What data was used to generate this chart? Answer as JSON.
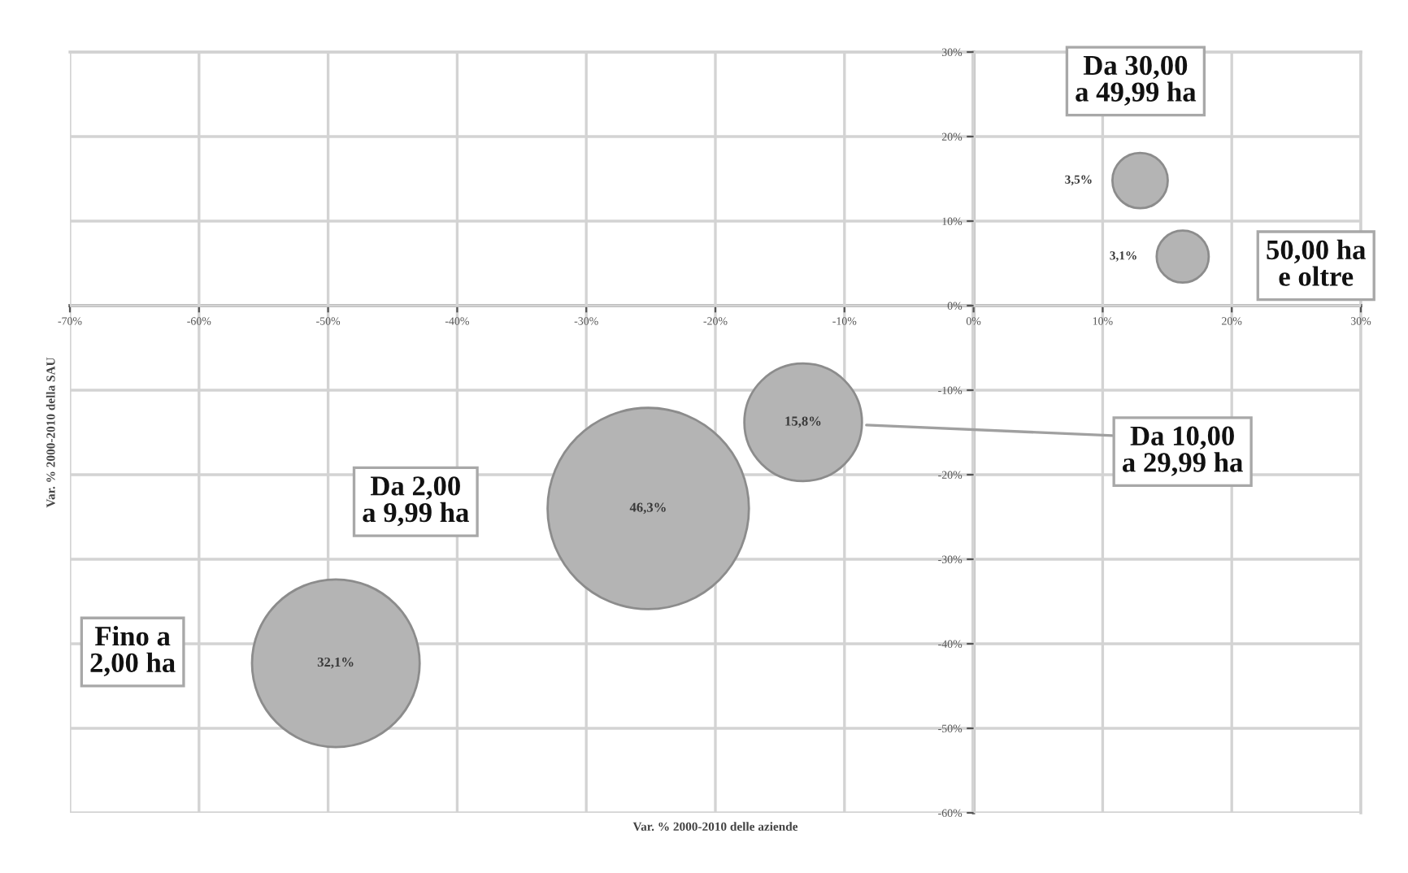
{
  "chart_data": {
    "type": "bubble",
    "xlabel": "Var. % 2000-2010 delle aziende",
    "ylabel": "Var. % 2000-2010 della SAU",
    "xlim": [
      -70,
      30
    ],
    "ylim": [
      -60,
      30
    ],
    "xticks": [
      {
        "value": -70,
        "label": "-70%"
      },
      {
        "value": -60,
        "label": "-60%"
      },
      {
        "value": -50,
        "label": "-50%"
      },
      {
        "value": -40,
        "label": "-40%"
      },
      {
        "value": -30,
        "label": "-30%"
      },
      {
        "value": -20,
        "label": "-20%"
      },
      {
        "value": -10,
        "label": "-10%"
      },
      {
        "value": 0,
        "label": "0%"
      },
      {
        "value": 10,
        "label": "10%"
      },
      {
        "value": 20,
        "label": "20%"
      },
      {
        "value": 30,
        "label": "30%"
      }
    ],
    "yticks": [
      {
        "value": -60,
        "label": "-60%"
      },
      {
        "value": -50,
        "label": "-50%"
      },
      {
        "value": -40,
        "label": "-40%"
      },
      {
        "value": -30,
        "label": "-30%"
      },
      {
        "value": -20,
        "label": "-20%"
      },
      {
        "value": -10,
        "label": "-10%"
      },
      {
        "value": 0,
        "label": "0%"
      },
      {
        "value": 10,
        "label": "10%"
      },
      {
        "value": 20,
        "label": "20%"
      },
      {
        "value": 30,
        "label": "30%"
      }
    ],
    "grid": true,
    "series": [
      {
        "name": "Fino a\n2,00 ha",
        "color": "#b4b4b4",
        "x": [
          -49.4
        ],
        "values": [
          -42.3
        ],
        "sizes": [
          32.1
        ],
        "value_labels": [
          "32,1%"
        ]
      },
      {
        "name": "Da 2,00\na 9,99 ha",
        "color": "#b4b4b4",
        "x": [
          -25.2
        ],
        "values": [
          -24.0
        ],
        "sizes": [
          46.3
        ],
        "value_labels": [
          "46,3%"
        ]
      },
      {
        "name": "Da 10,00\na 29,99 ha",
        "color": "#b4b4b4",
        "x": [
          -13.2
        ],
        "values": [
          -13.8
        ],
        "sizes": [
          15.8
        ],
        "value_labels": [
          "15,8%"
        ]
      },
      {
        "name": "Da 30,00\na 49,99 ha",
        "color": "#b4b4b4",
        "x": [
          12.9
        ],
        "values": [
          14.8
        ],
        "sizes": [
          3.5
        ],
        "value_labels": [
          "3,5%"
        ]
      },
      {
        "name": "50,00 ha\ne oltre",
        "color": "#b4b4b4",
        "x": [
          16.2
        ],
        "values": [
          5.8
        ],
        "sizes": [
          3.1
        ],
        "value_labels": [
          "3,1%"
        ]
      }
    ]
  }
}
